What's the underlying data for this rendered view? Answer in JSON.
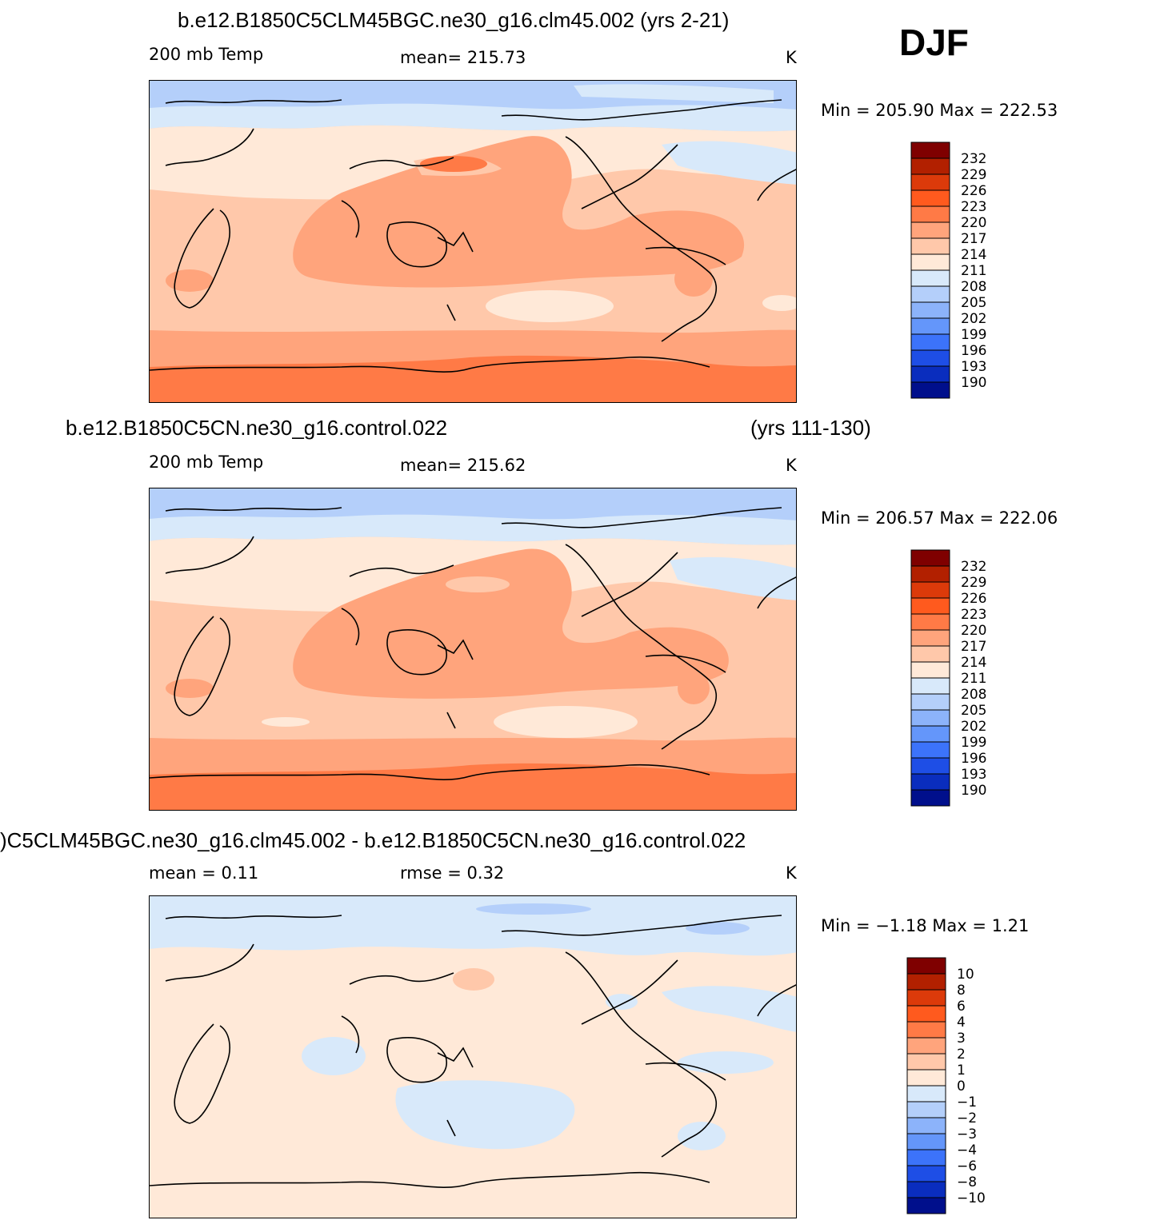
{
  "season": "DJF",
  "panels": [
    {
      "id": "top",
      "title": "b.e12.B1850C5CLM45BGC.ne30_g16.clm45.002 (yrs 2-21)",
      "title_right": "",
      "left_label": "200 mb Temp",
      "center_label": "mean=  215.73",
      "center_label2": "",
      "units": "K",
      "minmax": "Min  =  205.90  Max  =  222.53",
      "colorbar_labels": [
        "232",
        "229",
        "226",
        "223",
        "220",
        "217",
        "214",
        "211",
        "208",
        "205",
        "202",
        "199",
        "196",
        "193",
        "190"
      ]
    },
    {
      "id": "middle",
      "title": "b.e12.B1850C5CN.ne30_g16.control.022",
      "title_right": "(yrs 111-130)",
      "left_label": "200 mb Temp",
      "center_label": "mean=  215.62",
      "center_label2": "",
      "units": "K",
      "minmax": "Min  =  206.57  Max  =  222.06",
      "colorbar_labels": [
        "232",
        "229",
        "226",
        "223",
        "220",
        "217",
        "214",
        "211",
        "208",
        "205",
        "202",
        "199",
        "196",
        "193",
        "190"
      ]
    },
    {
      "id": "bottom",
      "title": ")C5CLM45BGC.ne30_g16.clm45.002 - b.e12.B1850C5CN.ne30_g16.control.022",
      "title_right": "",
      "left_label": "mean  =     0.11",
      "center_label": "rmse  =     0.32",
      "center_label2": "",
      "units": "K",
      "minmax": "Min  =    −1.18  Max  =     1.21",
      "colorbar_labels": [
        "10",
        "8",
        "6",
        "4",
        "3",
        "2",
        "1",
        "0",
        "−1",
        "−2",
        "−3",
        "−4",
        "−6",
        "−8",
        "−10"
      ]
    }
  ],
  "colors": {
    "temp_scale": [
      "#7f0000",
      "#b22000",
      "#dc3a0a",
      "#ff5a1e",
      "#ff7a46",
      "#ffa47c",
      "#ffc8aa",
      "#ffe9d8",
      "#d8e9fa",
      "#b4cffa",
      "#8cb3fa",
      "#6496fa",
      "#3c73fa",
      "#1e4ee6",
      "#0a2dbe",
      "#000f8c"
    ],
    "diff_scale": [
      "#7f0000",
      "#b22000",
      "#dc3a0a",
      "#ff5a1e",
      "#ff7a46",
      "#ffa47c",
      "#ffc8aa",
      "#ffe9d8",
      "#d8e9fa",
      "#b4cffa",
      "#8cb3fa",
      "#6496fa",
      "#3c73fa",
      "#1e4ee6",
      "#0a2dbe",
      "#000f8c"
    ]
  }
}
